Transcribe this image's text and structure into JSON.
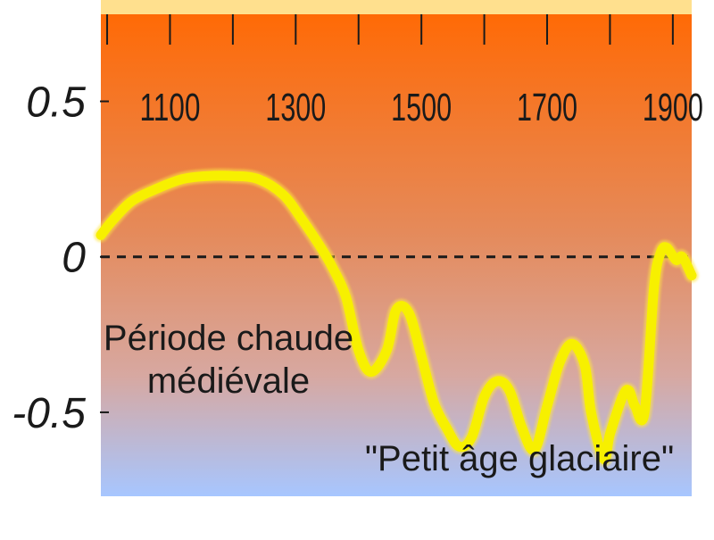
{
  "chart_data": {
    "type": "line",
    "x_ticks": [
      1100,
      1300,
      1500,
      1700,
      1900
    ],
    "y_ticks": [
      {
        "value": 0.5,
        "label": "0.5"
      },
      {
        "value": 0,
        "label": "0"
      },
      {
        "value": -0.5,
        "label": "-0.5"
      }
    ],
    "xlim": [
      990,
      1930
    ],
    "ylim": [
      -0.77,
      0.78
    ],
    "reference_line": {
      "y": 0,
      "style": "dashed"
    },
    "series": [
      {
        "color": "#f7f000",
        "x": [
          990,
          1010,
          1040,
          1080,
          1120,
          1160,
          1200,
          1240,
          1280,
          1310,
          1340,
          1360,
          1380,
          1400,
          1420,
          1445,
          1460,
          1480,
          1500,
          1520,
          1540,
          1560,
          1580,
          1600,
          1620,
          1640,
          1660,
          1680,
          1700,
          1720,
          1740,
          1760,
          1770,
          1790,
          1800,
          1820,
          1830,
          1840,
          1855,
          1870,
          1880,
          1890,
          1905,
          1915,
          1930
        ],
        "y": [
          0.07,
          0.12,
          0.18,
          0.22,
          0.25,
          0.26,
          0.26,
          0.25,
          0.2,
          0.12,
          0.03,
          -0.04,
          -0.13,
          -0.3,
          -0.37,
          -0.3,
          -0.17,
          -0.18,
          -0.32,
          -0.47,
          -0.55,
          -0.61,
          -0.58,
          -0.45,
          -0.4,
          -0.43,
          -0.55,
          -0.62,
          -0.48,
          -0.34,
          -0.28,
          -0.35,
          -0.5,
          -0.65,
          -0.57,
          -0.45,
          -0.43,
          -0.48,
          -0.5,
          -0.1,
          0.01,
          0.03,
          -0.01,
          0.0,
          -0.06
        ]
      }
    ],
    "annotations": [
      {
        "lines": [
          "Période chaude",
          "médiévale"
        ]
      },
      {
        "lines": [
          "\"Petit âge glaciaire\""
        ]
      }
    ],
    "background_gradient": [
      "#ff6a06",
      "#e58a5a",
      "#d7a8a1",
      "#a7c6ff"
    ],
    "top_band_color": "#ffe08e",
    "grid": false
  }
}
